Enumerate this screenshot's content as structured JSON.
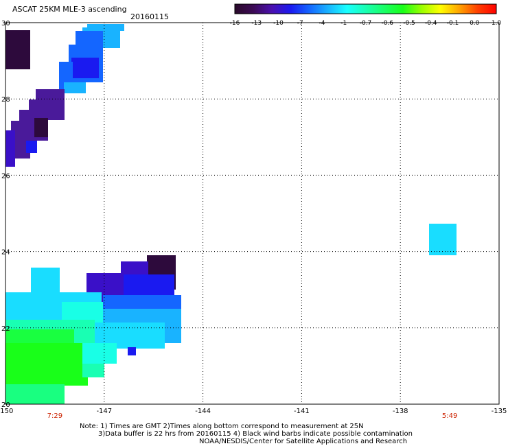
{
  "header": {
    "title": "ASCAT 25KM MLE-3 ascending",
    "date": "20160115"
  },
  "colorbar": {
    "tick_labels": [
      "-16",
      "-13",
      "-10",
      "-7",
      "-4",
      "-1",
      "-0.7",
      "-0.6",
      "-0.5",
      "-0.4",
      "-0.1",
      "0.0",
      "1.0"
    ],
    "gradient": [
      "#2a0a2a",
      "#3c0a55",
      "#4a10b0",
      "#1a1af0",
      "#1466ff",
      "#19b3ff",
      "#19ffff",
      "#19ffb3",
      "#19ff66",
      "#19ff19",
      "#9aff00",
      "#ffff00",
      "#ffa500",
      "#ff4000",
      "#ff0000"
    ]
  },
  "map": {
    "lon_range": [
      -150,
      -135
    ],
    "lat_range": [
      20,
      30
    ],
    "lon_ticks": [
      "-150",
      "-147",
      "-144",
      "-141",
      "-138",
      "-135"
    ],
    "lat_ticks": [
      "20",
      "22",
      "24",
      "26",
      "28",
      "30"
    ],
    "lat_tick_values": [
      20,
      22,
      24,
      26,
      28,
      30
    ],
    "lon_tick_values": [
      -150,
      -147,
      -144,
      -141,
      -138,
      -135
    ],
    "pass_times": [
      {
        "label": "7:29",
        "lon": -148.5
      },
      {
        "label": "5:49",
        "lon": -136.5
      }
    ],
    "colors": {
      "dark_purple": "#2d0a3c",
      "purple": "#4a1a9a",
      "violet": "#3a10c8",
      "blue": "#1a1af0",
      "mid_blue": "#1466ff",
      "sky": "#19b3ff",
      "cyan": "#19ddff",
      "aqua": "#19ffe6",
      "seafoam": "#19ffb3",
      "green_light": "#19ff80",
      "green": "#19ff40",
      "green_pure": "#19ff19"
    }
  },
  "notes": {
    "line1": "Note: 1) Times are GMT 2)Times along bottom correspond to measurement at 25N",
    "line2": "3)Data buffer is 22 hrs from 20160115 4) Black wind barbs indicate possible contamination",
    "line3": "NOAA/NESDIS/Center for Satellite Applications and Research"
  }
}
